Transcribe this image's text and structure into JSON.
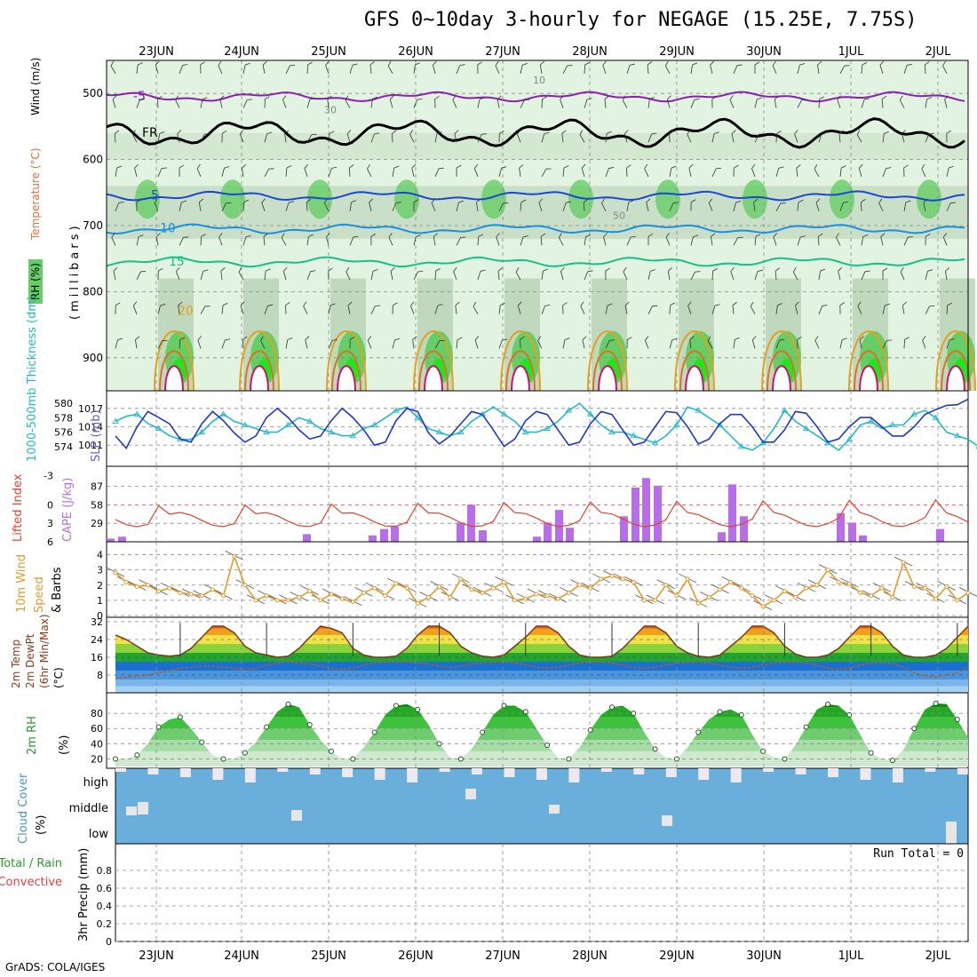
{
  "title": "GFS 0~10day 3-hourly for NEGAGE (15.25E, 7.75S)",
  "credit": "GrADS: COLA/IGES",
  "dates": [
    "23JUN",
    "24JUN",
    "25JUN",
    "26JUN",
    "27JUN",
    "28JUN",
    "29JUN",
    "30JUN",
    "1JUL",
    "2JUL"
  ],
  "colors": {
    "grid": "#8a8a8a",
    "rh_light": "#e3f3e1",
    "rh_mid": "#b7d2b5",
    "rh_green": "#67cd67",
    "rh_bright": "#1de81d",
    "sfc_green": "#3cc43c",
    "cloud": "#6aaedc",
    "cape": "#b86ee8",
    "li": "#e0422c",
    "wind": "#e39a2d",
    "slp": "#2038c8",
    "thick": "#23b8c8",
    "temp_hi": "#e07b10",
    "temp_line": "#7a3a1a"
  },
  "chart_data": [
    {
      "type": "heatmap",
      "panel": "upper_air",
      "ylabel": "(millibars)",
      "legend": [
        "RH (%)",
        "Temperature (°C)",
        "Wind (m/s)"
      ],
      "yticks": [
        500,
        600,
        700,
        800,
        900
      ],
      "ylim": [
        450,
        950
      ],
      "isotherms": [
        {
          "label": "-5",
          "level": 505
        },
        {
          "label": "FR",
          "level": 560
        },
        {
          "label": "5",
          "level": 655
        },
        {
          "label": "10",
          "level": 705
        },
        {
          "label": "15",
          "level": 755
        },
        {
          "label": "20",
          "level": 830
        }
      ],
      "rh_labels": [
        "10",
        "30",
        "50"
      ]
    },
    {
      "type": "line",
      "panel": "slp_thickness",
      "ylabel_left": "1000-500mb Thickness (dm)",
      "ylabel_right": "SLP (mb)",
      "yticks_left": [
        574,
        576,
        578,
        580
      ],
      "yticks_right": [
        1011,
        1014,
        1017
      ],
      "series": [
        {
          "name": "SLP (mb)",
          "values": [
            1012.5,
            1010.5,
            1014,
            1016.5,
            1015.5,
            1014.5,
            1012,
            1011.5,
            1014.5,
            1016.5,
            1015,
            1013,
            1011.5,
            1012.5,
            1015.5,
            1017,
            1015.5,
            1013.5,
            1012,
            1012.5,
            1015,
            1017,
            1015.5,
            1013.5,
            1011,
            1011.5,
            1015,
            1017,
            1016.5,
            1013,
            1011.2,
            1012.5,
            1014.5,
            1016.5,
            1016,
            1013.5,
            1010.8,
            1012,
            1015,
            1016.5,
            1016,
            1013.5,
            1011,
            1011.5,
            1014.5,
            1016.5,
            1016,
            1013.5,
            1011,
            1011.5,
            1014,
            1016.5,
            1016.3,
            1014,
            1011.2,
            1012,
            1014.5,
            1016,
            1016,
            1014,
            1011.5,
            1011.5,
            1013.5,
            1016.5,
            1016.2,
            1014,
            1011.5,
            1012,
            1014,
            1015.5,
            1015.5,
            1014,
            1012.5,
            1012.5,
            1014,
            1016,
            1016.8,
            1017.5,
            1017.6,
            1018.5
          ]
        },
        {
          "name": "1000-500mb Thickness (dm)",
          "values": [
            577.5,
            578.2,
            578.5,
            577.2,
            576.5,
            575.5,
            575,
            575,
            576,
            577.5,
            578.5,
            577.5,
            577,
            576.5,
            576,
            576,
            577,
            578,
            577.5,
            576.5,
            576,
            575.5,
            575.5,
            576.5,
            577,
            578,
            579,
            579.5,
            578,
            576.5,
            576,
            575.5,
            576,
            577.5,
            578.5,
            579.5,
            578.5,
            577.5,
            576,
            576,
            576.5,
            577.5,
            579,
            580,
            578.5,
            577,
            576,
            576,
            575.5,
            575,
            574.5,
            575.5,
            577,
            579.5,
            579,
            578,
            577,
            575.5,
            574,
            573.5,
            574.5,
            576.5,
            579,
            577.5,
            576.5,
            575.5,
            574.5,
            573.5,
            575,
            577,
            577.5,
            576.5,
            577,
            577,
            578.5,
            579,
            578,
            576,
            575.5,
            575,
            574,
            573.5,
            573
          ]
        }
      ]
    },
    {
      "type": "bar",
      "panel": "stability",
      "ylabel_left": "Lifted Index",
      "ylabel_right": "CAPE (J/kg)",
      "yticks_left": [
        -3,
        0,
        3,
        6
      ],
      "yticks_right": [
        29,
        58,
        87
      ],
      "series": [
        {
          "name": "CAPE (J/kg)",
          "values": [
            2,
            5,
            0,
            0,
            0,
            0,
            0,
            0,
            0,
            0,
            0,
            0,
            0,
            0,
            0,
            0,
            0,
            0,
            0,
            0,
            0,
            0,
            0,
            0,
            0,
            0,
            0,
            0,
            0,
            0,
            8,
            0,
            0,
            0,
            0,
            0,
            0,
            0,
            0,
            0,
            0,
            0,
            0,
            0,
            0,
            0,
            0,
            0,
            0,
            0,
            0,
            0,
            0,
            0,
            0,
            0,
            0,
            0,
            0,
            0,
            0,
            0,
            0,
            0,
            0,
            0,
            0,
            0,
            0,
            0,
            0,
            0,
            0,
            0,
            0,
            0,
            0,
            0,
            0,
            0
          ]
        }
      ]
    },
    {
      "type": "line",
      "panel": "wind10m",
      "ylabel": "10m Wind Speed & Barbs (m/s)",
      "yticks": [
        0,
        1,
        2,
        3,
        4
      ],
      "ylim": [
        0,
        4.5
      ],
      "series": [
        {
          "name": "10m Wind Speed",
          "values": [
            2.8,
            2.2,
            1.9,
            2.0,
            1.6,
            1.8,
            1.5,
            1.4,
            1.3,
            1.7,
            1.3,
            3.9,
            2.0,
            1.0,
            1.3,
            1.0,
            1.0,
            1.2,
            1.6,
            1.0,
            1.4,
            1.1,
            0.9,
            1.5,
            1.8,
            1.3,
            2.1,
            1.8,
            0.8,
            1.2,
            1.9,
            1.2,
            2.4,
            1.7,
            1.5,
            1.8,
            2.2,
            1.0,
            1.1,
            1.4,
            1.3,
            1.1,
            1.5,
            2.0,
            1.8,
            2.4,
            2.6,
            2.4,
            2.2,
            1.0,
            1.0,
            2.0,
            1.3,
            2.4,
            0.8,
            1.2,
            1.7,
            2.2,
            1.8,
            1.3,
            0.6,
            1.0,
            1.6,
            1.2,
            1.8,
            2.0,
            3.0,
            2.2,
            2.1,
            1.5,
            1.3,
            1.8,
            1.2,
            3.5,
            1.9,
            1.8,
            1.1,
            1.9,
            1.0,
            1.5
          ]
        }
      ]
    },
    {
      "type": "area",
      "panel": "temp2m",
      "ylabel": "2m Temp 2m DewPt (6hr Min/Max) (°C)",
      "yticks": [
        8,
        16,
        24,
        32
      ],
      "ylim": [
        0,
        34
      ],
      "series": [
        {
          "name": "2m Temp",
          "values": [
            26,
            24,
            21,
            18,
            17,
            16.5,
            17,
            20,
            25,
            30,
            30,
            27,
            21,
            18,
            17,
            16,
            16.5,
            20,
            25,
            30,
            29,
            27,
            20,
            17,
            16,
            16,
            16.5,
            20,
            26,
            30,
            30,
            27,
            21,
            18,
            16.5,
            16,
            17,
            21,
            25,
            30,
            30,
            27,
            21,
            17,
            16,
            16,
            16.5,
            20,
            25,
            30,
            30,
            27,
            21,
            18,
            16.5,
            16,
            17,
            21,
            25,
            30,
            30,
            27,
            21,
            17.5,
            16,
            16,
            17,
            20,
            25,
            30,
            30,
            27,
            21,
            17,
            16,
            16,
            17,
            20,
            25,
            30,
            29,
            26,
            20,
            17,
            16,
            15.5,
            15
          ]
        },
        {
          "name": "2m DewPt",
          "values": [
            6.5,
            7,
            7.5,
            8,
            9,
            10,
            11,
            11.5,
            12,
            12,
            11.5,
            11,
            10.5,
            11,
            12.5,
            13.5,
            14,
            13.5,
            13,
            12,
            11,
            10.5,
            11,
            12.5,
            13.5,
            13.8,
            14,
            14,
            13.5,
            13,
            12,
            11.5,
            12,
            13,
            13.5,
            13.8,
            14,
            13.7,
            12.5,
            11.5,
            11,
            11.5,
            12.5,
            13.5,
            13.8,
            13.8,
            13.5,
            12.5,
            11.5,
            11,
            11.5,
            12.5,
            13.5,
            13.8,
            13.8,
            13.5,
            12.5,
            11.5,
            11,
            11.5,
            12.5,
            13.5,
            13.8,
            13.8,
            13.5,
            12.5,
            11,
            10.5,
            11,
            12.5,
            13.5,
            13.7,
            13.3,
            11.5,
            9,
            7.5,
            7,
            8,
            9,
            11.5,
            14,
            15,
            15.2
          ]
        }
      ]
    },
    {
      "type": "area",
      "panel": "rh2m",
      "ylabel": "2m RH (%)",
      "yticks": [
        20,
        40,
        60,
        80
      ],
      "ylim": [
        10,
        100
      ],
      "series": [
        {
          "name": "2m RH",
          "values": [
            20,
            20,
            25,
            40,
            62,
            72,
            75,
            60,
            42,
            25,
            20,
            20,
            28,
            42,
            62,
            82,
            92,
            88,
            65,
            45,
            30,
            20,
            20,
            35,
            55,
            78,
            90,
            92,
            85,
            65,
            40,
            22,
            20,
            33,
            55,
            78,
            90,
            90,
            82,
            60,
            38,
            22,
            20,
            35,
            58,
            78,
            88,
            90,
            80,
            55,
            33,
            22,
            20,
            35,
            55,
            72,
            82,
            85,
            78,
            52,
            30,
            22,
            20,
            38,
            62,
            85,
            92,
            90,
            78,
            52,
            28,
            20,
            18,
            32,
            60,
            85,
            93,
            92,
            72,
            48,
            25,
            15
          ]
        }
      ]
    },
    {
      "type": "bar",
      "panel": "cloud_cover",
      "ylabel": "Cloud Cover (%)",
      "levels": [
        "high",
        "middle",
        "low"
      ]
    },
    {
      "type": "bar",
      "panel": "precip",
      "ylabel": "3hr Precip (mm)",
      "legend": [
        "Total / Rain",
        "Convective"
      ],
      "yticks": [
        0,
        0.2,
        0.4,
        0.6,
        0.8
      ],
      "ylim": [
        0,
        1
      ],
      "annotation": "Run Total = 0",
      "series": [
        {
          "name": "3hr Precip",
          "values": []
        }
      ]
    }
  ]
}
